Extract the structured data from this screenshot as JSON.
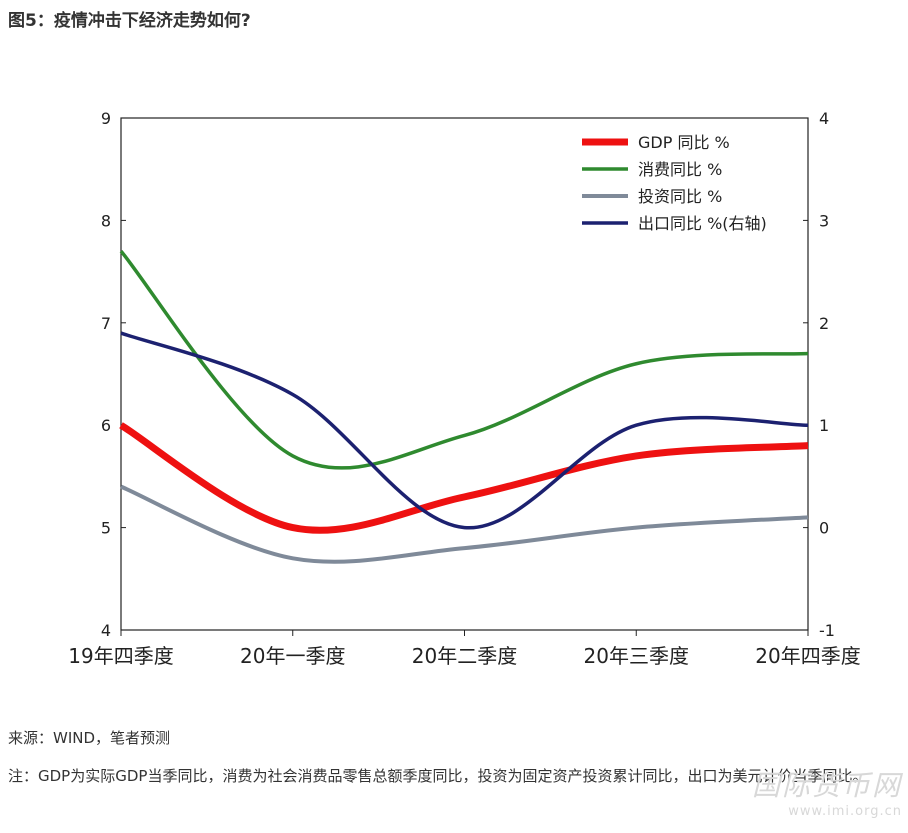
{
  "title": "图5：疫情冲击下经济走势如何?",
  "source": "来源：WIND，笔者预测",
  "note": "注：GDP为实际GDP当季同比，消费为社会消费品零售总额季度同比，投资为固定资产投资累计同比，出口为美元计价当季同比。",
  "watermark": {
    "name": "国际货币网",
    "url": "www.imi.org.cn"
  },
  "chart_data": {
    "type": "line",
    "categories": [
      "19年四季度",
      "20年一季度",
      "20年二季度",
      "20年三季度",
      "20年四季度"
    ],
    "y_left": {
      "min": 4,
      "max": 9,
      "ticks": [
        4,
        5,
        6,
        7,
        8,
        9
      ]
    },
    "y_right": {
      "min": -1,
      "max": 4,
      "ticks": [
        -1,
        0,
        1,
        2,
        3,
        4
      ]
    },
    "grid": false,
    "legend_position": "top-right",
    "series": [
      {
        "name": "GDP 同比 %",
        "axis": "left",
        "color": "#ee1111",
        "width": 7,
        "values": [
          6.0,
          5.0,
          5.3,
          5.7,
          5.8
        ]
      },
      {
        "name": "消费同比 %",
        "axis": "left",
        "color": "#2f8a2f",
        "width": 3.5,
        "values": [
          7.7,
          5.7,
          5.9,
          6.6,
          6.7
        ]
      },
      {
        "name": "投资同比 %",
        "axis": "left",
        "color": "#7f8a99",
        "width": 4,
        "values": [
          5.4,
          4.7,
          4.8,
          5.0,
          5.1
        ]
      },
      {
        "name": "出口同比 %(右轴)",
        "axis": "right",
        "color": "#1c2170",
        "width": 3.5,
        "values": [
          1.9,
          1.3,
          0.0,
          1.0,
          1.0
        ]
      }
    ]
  }
}
